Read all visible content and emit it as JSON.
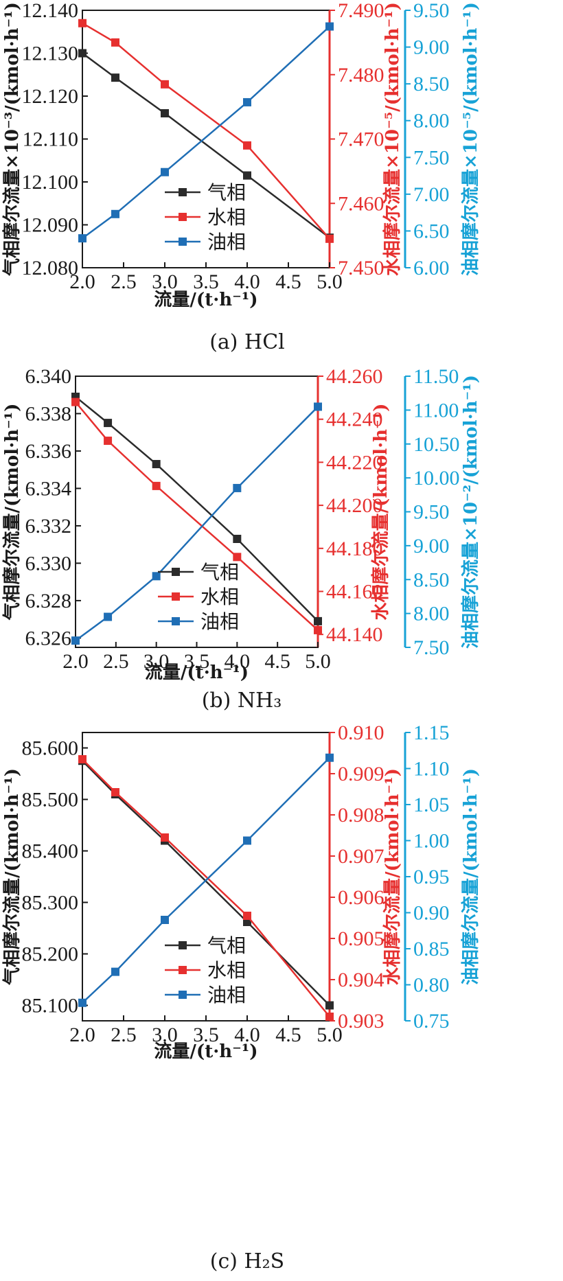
{
  "colors": {
    "gas": "#2b2b2b",
    "water": "#e6302f",
    "oil": "#1f6eb5",
    "oil_axis": "#17a2d6"
  },
  "chart_data": [
    {
      "type": "line",
      "caption": "(a) HCl",
      "xlabel": "流量/(t·h⁻¹)",
      "ylabel_left": "气相摩尔流量×10⁻³/(kmol·h⁻¹)",
      "ylabel_right1": "水相摩尔流量×10⁻⁵/(kmol·h⁻¹)",
      "ylabel_right2": "油相摩尔流量×10⁻⁵/(kmol·h⁻¹)",
      "x_ticks": [
        "2.0",
        "2.5",
        "3.0",
        "3.5",
        "4.0",
        "4.5",
        "5.0"
      ],
      "xlim": [
        2.0,
        5.0
      ],
      "left_ticks": [
        "12.140",
        "12.130",
        "12.120",
        "12.110",
        "12.100",
        "12.090",
        "12.080"
      ],
      "left_lim": [
        12.08,
        12.14
      ],
      "right1_ticks": [
        "7.490",
        "7.480",
        "7.470",
        "7.460",
        "7.450"
      ],
      "right1_lim": [
        7.45,
        7.49
      ],
      "right2_ticks": [
        "9.50",
        "9.00",
        "8.50",
        "8.00",
        "7.50",
        "7.00",
        "6.50",
        "6.00"
      ],
      "right2_lim": [
        6.0,
        9.5
      ],
      "legend": [
        "气相",
        "水相",
        "油相"
      ],
      "series": [
        {
          "name": "气相",
          "axis": "left",
          "x": [
            2.0,
            2.4,
            3.0,
            4.0,
            5.0
          ],
          "y": [
            12.13,
            12.1243,
            12.116,
            12.1015,
            12.087
          ]
        },
        {
          "name": "水相",
          "axis": "right1",
          "x": [
            2.0,
            2.4,
            3.0,
            4.0,
            5.0
          ],
          "y": [
            7.488,
            7.485,
            7.4785,
            7.469,
            7.4545
          ]
        },
        {
          "name": "油相",
          "axis": "right2",
          "x": [
            2.0,
            2.4,
            3.0,
            4.0,
            5.0
          ],
          "y": [
            6.4,
            6.73,
            7.3,
            8.25,
            9.28
          ]
        }
      ]
    },
    {
      "type": "line",
      "caption": "(b) NH₃",
      "xlabel": "流量/(t·h⁻¹)",
      "ylabel_left": "气相摩尔流量/(kmol·h⁻¹)",
      "ylabel_right1": "水相摩尔流量/(kmol·h⁻¹)",
      "ylabel_right2": "油相摩尔流量×10⁻²/(kmol·h⁻¹)",
      "x_ticks": [
        "2.0",
        "2.5",
        "3.0",
        "3.5",
        "4.0",
        "4.5",
        "5.0"
      ],
      "xlim": [
        2.0,
        5.0
      ],
      "left_ticks": [
        "6.340",
        "6.338",
        "6.336",
        "6.334",
        "6.332",
        "6.330",
        "6.328",
        "6.326"
      ],
      "left_lim": [
        6.3255,
        6.34
      ],
      "right1_ticks": [
        "44.260",
        "44.240",
        "44.220",
        "44.200",
        "44.180",
        "44.160",
        "44.140"
      ],
      "right1_lim": [
        44.134,
        44.26
      ],
      "right2_ticks": [
        "11.50",
        "11.00",
        "10.50",
        "10.00",
        "9.50",
        "9.00",
        "8.50",
        "8.00",
        "7.50"
      ],
      "right2_lim": [
        7.5,
        11.5
      ],
      "legend": [
        "气相",
        "水相",
        "油相"
      ],
      "series": [
        {
          "name": "气相",
          "axis": "left",
          "x": [
            2.0,
            2.4,
            3.0,
            4.0,
            5.0
          ],
          "y": [
            6.3389,
            6.3375,
            6.3353,
            6.3313,
            6.3269
          ]
        },
        {
          "name": "水相",
          "axis": "right1",
          "x": [
            2.0,
            2.4,
            3.0,
            4.0,
            5.0
          ],
          "y": [
            44.248,
            44.23,
            44.209,
            44.176,
            44.142
          ]
        },
        {
          "name": "油相",
          "axis": "right2",
          "x": [
            2.0,
            2.4,
            3.0,
            4.0,
            5.0
          ],
          "y": [
            7.6,
            7.95,
            8.55,
            9.85,
            11.05
          ]
        }
      ]
    },
    {
      "type": "line",
      "caption": "(c) H₂S",
      "xlabel": "流量/(t·h⁻¹)",
      "ylabel_left": "气相摩尔流量/(kmol·h⁻¹)",
      "ylabel_right1": "水相摩尔流量/(kmol·h⁻¹)",
      "ylabel_right2": "油相摩尔流量/(kmol·h⁻¹)",
      "x_ticks": [
        "2.0",
        "2.5",
        "3.0",
        "3.5",
        "4.0",
        "4.5",
        "5.0"
      ],
      "xlim": [
        2.0,
        5.0
      ],
      "left_ticks": [
        "85.600",
        "85.500",
        "85.400",
        "85.300",
        "85.200",
        "85.100"
      ],
      "left_lim": [
        85.07,
        85.63
      ],
      "right1_ticks": [
        "0.910",
        "0.909",
        "0.908",
        "0.907",
        "0.906",
        "0.905",
        "0.904",
        "0.903"
      ],
      "right1_lim": [
        0.903,
        0.91
      ],
      "right2_ticks": [
        "1.15",
        "1.10",
        "1.05",
        "1.00",
        "0.95",
        "0.90",
        "0.85",
        "0.80",
        "0.75"
      ],
      "right2_lim": [
        0.75,
        1.15
      ],
      "legend": [
        "气相",
        "水相",
        "油相"
      ],
      "series": [
        {
          "name": "气相",
          "axis": "left",
          "x": [
            2.0,
            2.4,
            3.0,
            4.0,
            5.0
          ],
          "y": [
            85.575,
            85.51,
            85.42,
            85.262,
            85.1
          ]
        },
        {
          "name": "水相",
          "axis": "right1",
          "x": [
            2.0,
            2.4,
            3.0,
            4.0,
            5.0
          ],
          "y": [
            0.90935,
            0.90855,
            0.90745,
            0.90555,
            0.9031
          ]
        },
        {
          "name": "油相",
          "axis": "right2",
          "x": [
            2.0,
            2.4,
            3.0,
            4.0,
            5.0
          ],
          "y": [
            0.775,
            0.818,
            0.89,
            1.0,
            1.115
          ]
        }
      ]
    }
  ]
}
